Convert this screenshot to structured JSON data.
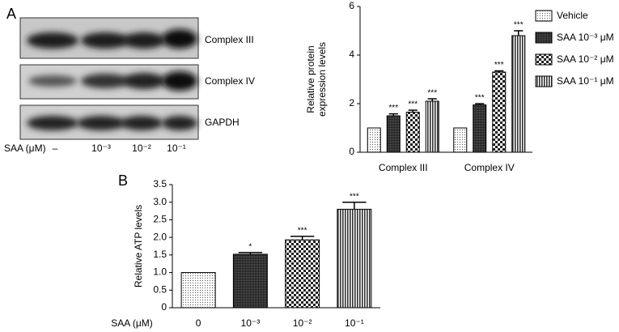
{
  "panels": [
    "A",
    "B"
  ],
  "blot": {
    "bands": [
      "Complex III",
      "Complex IV",
      "GAPDH"
    ],
    "row_label": "SAA (μM)",
    "lanes": [
      "–",
      "10⁻³",
      "10⁻²",
      "10⁻¹"
    ]
  },
  "chart_data": [
    {
      "type": "bar",
      "ylabel": [
        "Relative protein",
        "expression levels"
      ],
      "categories": [
        "Complex III",
        "Complex IV"
      ],
      "series": [
        {
          "name": "Vehicle",
          "color": "#000000",
          "pattern": "dots",
          "values": [
            1,
            1
          ],
          "errors": [
            0,
            0
          ]
        },
        {
          "name": "SAA 10⁻³ μM",
          "color": "#000000",
          "pattern": "dense",
          "values": [
            1.5,
            1.95
          ],
          "errors": [
            0.08,
            0.05
          ],
          "annotations": [
            "***",
            "***"
          ]
        },
        {
          "name": "SAA 10⁻² μM",
          "color": "#000000",
          "pattern": "checker",
          "values": [
            1.65,
            3.3
          ],
          "errors": [
            0.08,
            0.05
          ],
          "annotations": [
            "***",
            "***"
          ]
        },
        {
          "name": "SAA 10⁻¹ μM",
          "color": "#000000",
          "pattern": "stripes",
          "values": [
            2.1,
            4.8
          ],
          "errors": [
            0.1,
            0.2
          ],
          "annotations": [
            "***",
            "***"
          ]
        }
      ],
      "ylim": [
        0,
        6
      ],
      "yticks": [
        0,
        2,
        4,
        6
      ],
      "legend": "right"
    },
    {
      "type": "bar",
      "ylabel": [
        "Relative ATP levels"
      ],
      "xlabel": "SAA (μM)",
      "categories": [
        "0",
        "10⁻³",
        "10⁻²",
        "10⁻¹"
      ],
      "values": [
        1,
        1.52,
        1.93,
        2.8
      ],
      "errors": [
        0,
        0.05,
        0.1,
        0.2
      ],
      "annotations": [
        null,
        "*",
        "***",
        "***"
      ],
      "patterns": [
        "dots",
        "dense",
        "checker",
        "stripes"
      ],
      "color": "#000000",
      "ylim": [
        0,
        3.5
      ],
      "yticks": [
        0,
        0.5,
        {
          "value": 1,
          "label": "1.0"
        },
        1.5,
        {
          "value": 2,
          "label": "2.0"
        },
        2.5,
        {
          "value": 3,
          "label": "3.0"
        },
        3.5
      ]
    }
  ]
}
